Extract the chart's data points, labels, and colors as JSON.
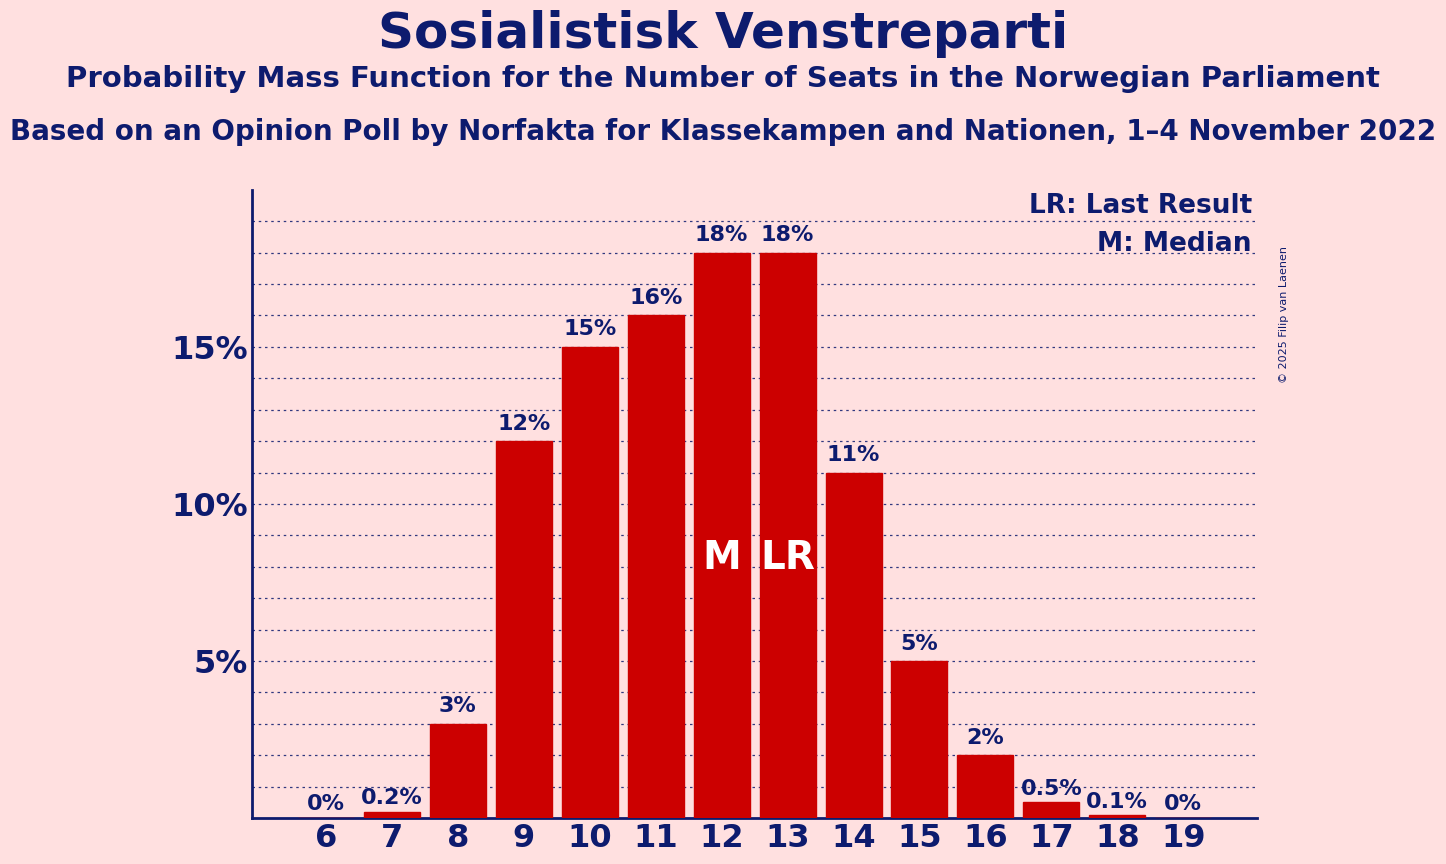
{
  "title": "Sosialistisk Venstreparti",
  "subtitle": "Probability Mass Function for the Number of Seats in the Norwegian Parliament",
  "source": "Based on an Opinion Poll by Norfakta for Klassekampen and Nationen, 1–4 November 2022",
  "copyright": "© 2025 Filip van Laenen",
  "categories": [
    6,
    7,
    8,
    9,
    10,
    11,
    12,
    13,
    14,
    15,
    16,
    17,
    18,
    19
  ],
  "values": [
    0.0,
    0.2,
    3.0,
    12.0,
    15.0,
    16.0,
    18.0,
    18.0,
    11.0,
    5.0,
    2.0,
    0.5,
    0.1,
    0.0
  ],
  "labels": [
    "0%",
    "0.2%",
    "3%",
    "12%",
    "15%",
    "16%",
    "18%",
    "18%",
    "11%",
    "5%",
    "2%",
    "0.5%",
    "0.1%",
    "0%"
  ],
  "bar_color": "#CC0000",
  "background_color": "#FFE0E0",
  "title_color": "#0D1B6E",
  "axis_color": "#0D1B6E",
  "grid_color": "#0D1B6E",
  "label_color": "#0D1B6E",
  "median_index": 6,
  "lr_index": 7,
  "median_label": "M",
  "lr_label": "LR",
  "legend_lr": "LR: Last Result",
  "legend_m": "M: Median",
  "ylim": [
    0,
    20
  ],
  "yticks": [
    5,
    10,
    15
  ],
  "ytick_labels": [
    "5%",
    "10%",
    "15%"
  ],
  "title_fontsize": 36,
  "subtitle_fontsize": 21,
  "source_fontsize": 20,
  "label_fontsize": 16,
  "tick_fontsize": 23,
  "legend_fontsize": 19,
  "copyright_fontsize": 8
}
